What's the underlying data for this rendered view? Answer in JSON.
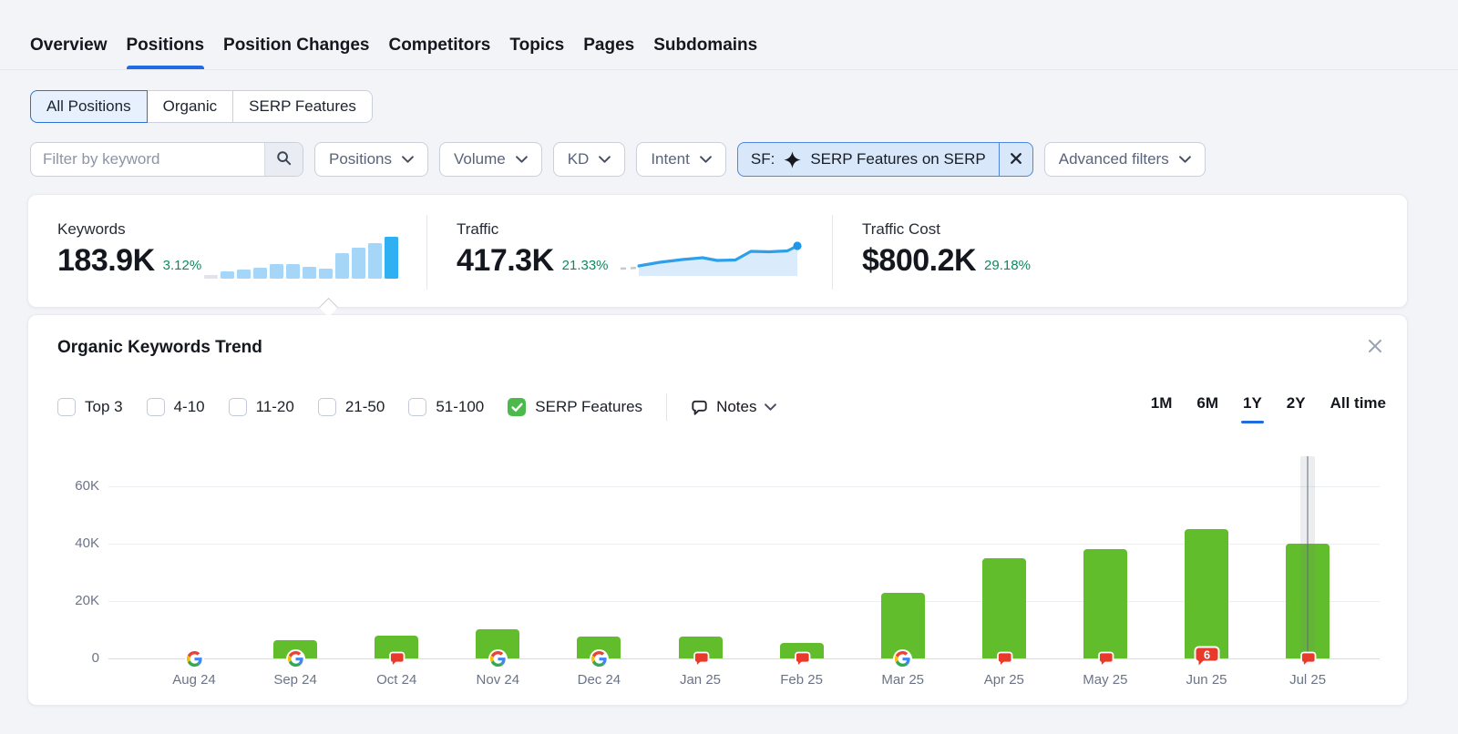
{
  "nav": {
    "tabs": [
      {
        "label": "Overview",
        "active": false
      },
      {
        "label": "Positions",
        "active": true
      },
      {
        "label": "Position Changes",
        "active": false
      },
      {
        "label": "Competitors",
        "active": false
      },
      {
        "label": "Topics",
        "active": false
      },
      {
        "label": "Pages",
        "active": false
      },
      {
        "label": "Subdomains",
        "active": false
      }
    ]
  },
  "segmented_control": {
    "options": [
      {
        "label": "All Positions",
        "selected": true
      },
      {
        "label": "Organic",
        "selected": false
      },
      {
        "label": "SERP Features",
        "selected": false
      }
    ]
  },
  "filter_bar": {
    "keyword_placeholder": "Filter by keyword",
    "dropdowns": [
      "Positions",
      "Volume",
      "KD",
      "Intent"
    ],
    "serp_filter_chip": {
      "prefix": "SF:",
      "label": "SERP Features on SERP"
    },
    "advanced_filters_label": "Advanced filters"
  },
  "stats": {
    "keywords": {
      "label": "Keywords",
      "value": "183.9K",
      "change": "3.12%",
      "spark_bars": [
        4,
        8,
        10,
        12,
        16,
        16,
        13,
        11,
        28,
        34,
        39,
        46
      ]
    },
    "traffic": {
      "label": "Traffic",
      "value": "417.3K",
      "change": "21.33%",
      "spark_line": [
        [
          22,
          34
        ],
        [
          45,
          30
        ],
        [
          70,
          27
        ],
        [
          92,
          25
        ],
        [
          108,
          28
        ],
        [
          128,
          27.5
        ],
        [
          145,
          18
        ],
        [
          165,
          18.5
        ],
        [
          185,
          17.5
        ],
        [
          196,
          12
        ]
      ]
    },
    "traffic_cost": {
      "label": "Traffic Cost",
      "value": "$800.2K",
      "change": "29.18%"
    }
  },
  "trend": {
    "title": "Organic Keywords Trend",
    "filters": [
      {
        "label": "Top 3",
        "checked": false
      },
      {
        "label": "4-10",
        "checked": false
      },
      {
        "label": "11-20",
        "checked": false
      },
      {
        "label": "21-50",
        "checked": false
      },
      {
        "label": "51-100",
        "checked": false
      },
      {
        "label": "SERP Features",
        "checked": true
      }
    ],
    "notes_label": "Notes",
    "time_ranges": [
      {
        "label": "1M",
        "active": false
      },
      {
        "label": "6M",
        "active": false
      },
      {
        "label": "1Y",
        "active": true
      },
      {
        "label": "2Y",
        "active": false
      },
      {
        "label": "All time",
        "active": false
      }
    ]
  },
  "chart_data": {
    "type": "bar",
    "title": "Organic Keywords Trend",
    "categories": [
      "Aug 24",
      "Sep 24",
      "Oct 24",
      "Nov 24",
      "Dec 24",
      "Jan 25",
      "Feb 25",
      "Mar 25",
      "Apr 25",
      "May 25",
      "Jun 25",
      "Jul 25"
    ],
    "series": [
      {
        "name": "SERP Features",
        "values": [
          0,
          6500,
          8000,
          10000,
          7500,
          7500,
          5500,
          23000,
          35000,
          38000,
          45000,
          40000
        ]
      }
    ],
    "markers": [
      "google",
      "google",
      "note",
      "google",
      "google",
      "note",
      "note",
      "google",
      "note",
      "note",
      "note",
      "note"
    ],
    "note_badge": {
      "index": 10,
      "count": "6"
    },
    "hover_index": 11,
    "ylim": [
      0,
      60000
    ],
    "yticks": [
      {
        "value": 0,
        "label": "0"
      },
      {
        "value": 20000,
        "label": "20K"
      },
      {
        "value": 40000,
        "label": "40K"
      },
      {
        "value": 60000,
        "label": "60K"
      }
    ],
    "grid": true,
    "legend": "none",
    "bar_color": "#61bd2b"
  },
  "colors": {
    "accent_blue": "#1f6be3",
    "bar_green": "#61bd2b",
    "checkbox_green": "#4cba4a",
    "note_red": "#e8392b",
    "change_green": "#0c8a5c",
    "spark_line_blue": "#2f9fe8",
    "spark_bar_light": "#a5d6f8",
    "spark_bar_dark": "#2fb0f2"
  }
}
